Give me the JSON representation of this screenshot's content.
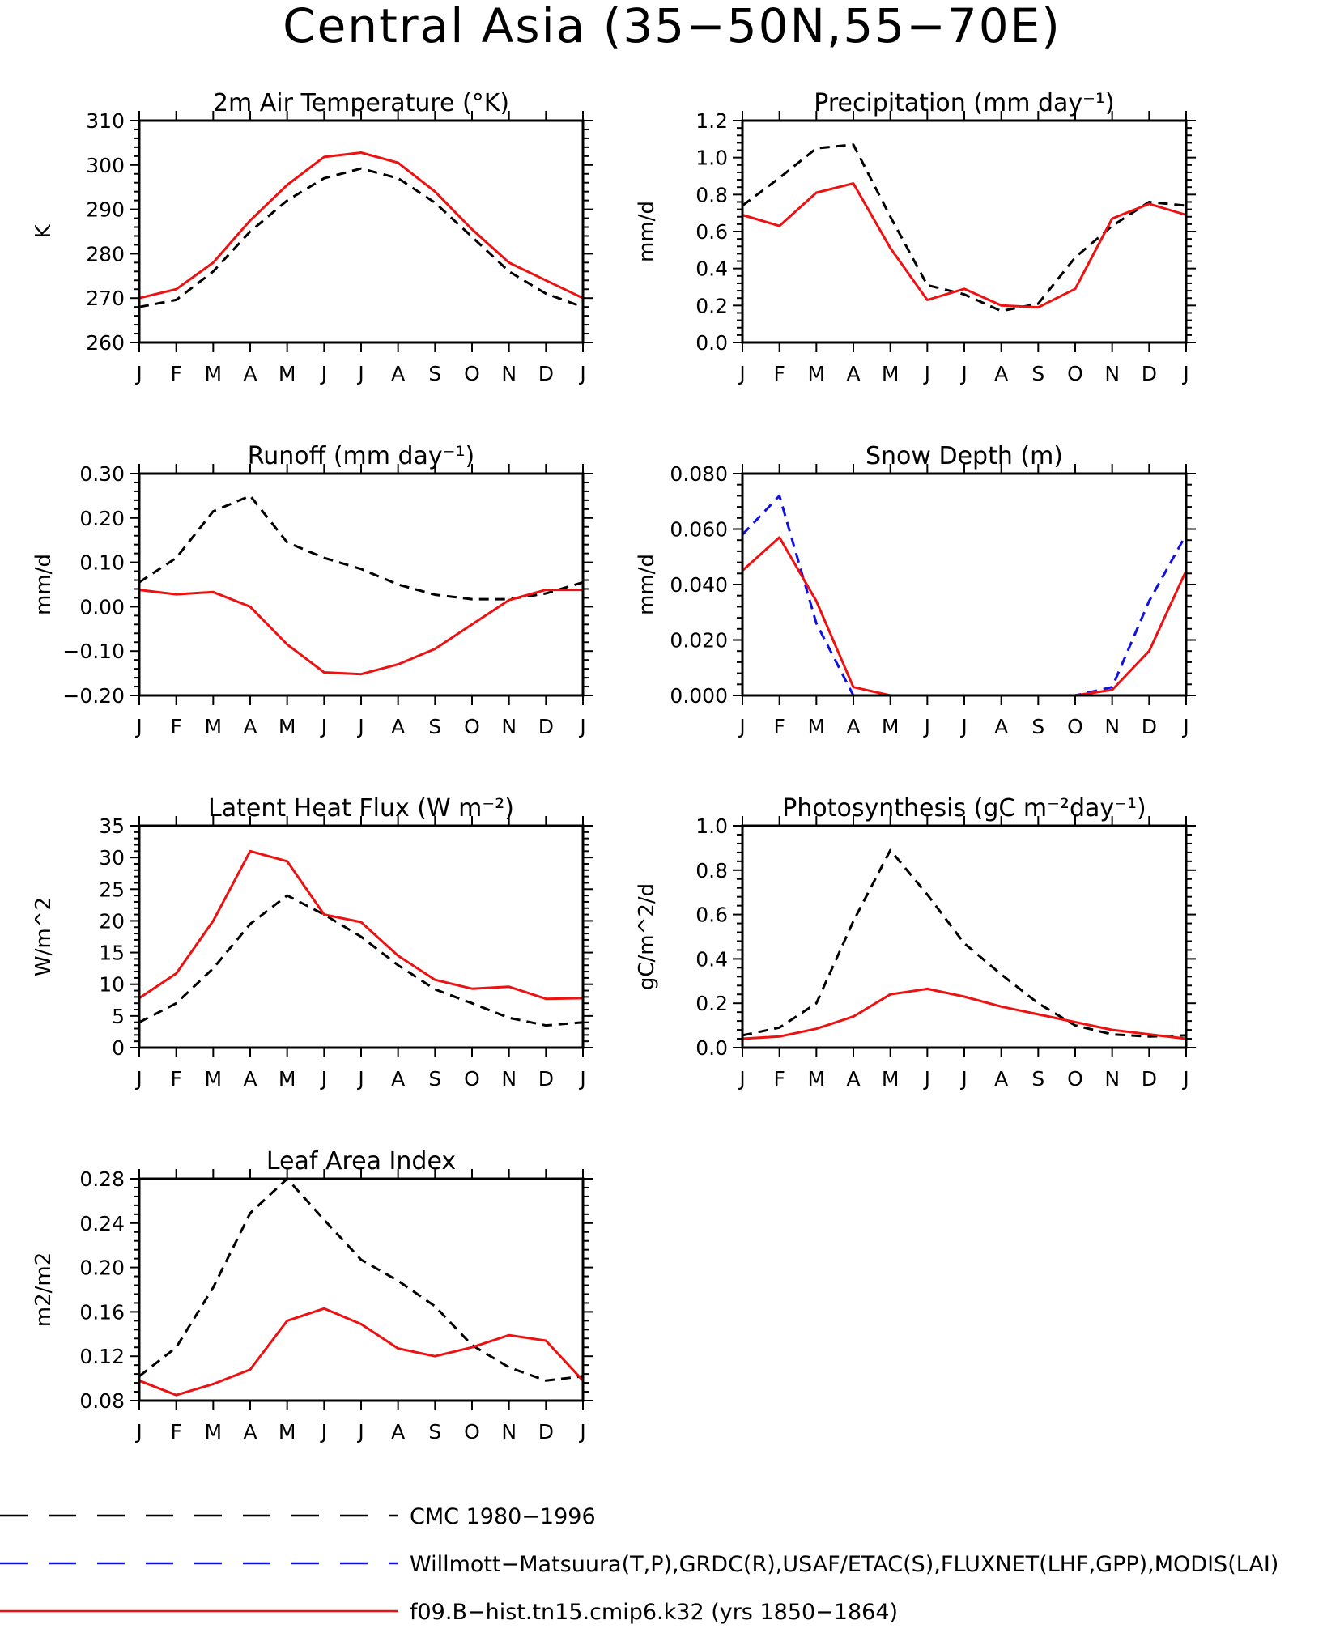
{
  "figure_title": "Central Asia (35−50N,55−70E)",
  "months": [
    "J",
    "F",
    "M",
    "A",
    "M",
    "J",
    "J",
    "A",
    "S",
    "O",
    "N",
    "D",
    "J"
  ],
  "colors": {
    "cmc": "#000000",
    "obs": "#1010e0",
    "model": "#ee1111"
  },
  "legend": [
    {
      "label": "CMC 1980−1996",
      "color": "#000000",
      "style": "dashed"
    },
    {
      "label": "Willmott−Matsuura(T,P),GRDC(R),USAF/ETAC(S),FLUXNET(LHF,GPP),MODIS(LAI)",
      "color": "#1010e0",
      "style": "dashed"
    },
    {
      "label": "f09.B−hist.tn15.cmip6.k32 (yrs 1850−1864)",
      "color": "#ee1111",
      "style": "solid"
    }
  ],
  "chart_data": [
    {
      "type": "line",
      "title": "2m Air Temperature (°K)",
      "ylabel": "K",
      "ylim": [
        260,
        310
      ],
      "yticks": [
        "260",
        "270",
        "280",
        "290",
        "300",
        "310"
      ],
      "series": [
        {
          "name": "CMC 1980−1996",
          "style": "dashed",
          "color": "#000000",
          "values": [
            268.0,
            269.6,
            276.0,
            285.0,
            292.0,
            297.0,
            299.2,
            297.0,
            291.5,
            283.8,
            276.0,
            271.0,
            268.0
          ]
        },
        {
          "name": "f09.B−hist.tn15.cmip6.k32 (yrs 1850−1864)",
          "style": "solid",
          "color": "#ee1111",
          "values": [
            270.0,
            272.0,
            278.0,
            287.5,
            295.5,
            301.8,
            302.8,
            300.5,
            294.0,
            285.5,
            278.0,
            274.0,
            270.0
          ]
        }
      ]
    },
    {
      "type": "line",
      "title": "Precipitation (mm day⁻¹)",
      "ylabel": "mm/d",
      "ylim": [
        0,
        1.2
      ],
      "yticks": [
        "0.0",
        "0.2",
        "0.4",
        "0.6",
        "0.8",
        "1.0",
        "1.2"
      ],
      "series": [
        {
          "name": "CMC 1980−1996",
          "style": "dashed",
          "color": "#000000",
          "values": [
            0.74,
            0.89,
            1.05,
            1.07,
            0.68,
            0.31,
            0.26,
            0.17,
            0.21,
            0.46,
            0.63,
            0.76,
            0.74
          ]
        },
        {
          "name": "f09.B−hist.tn15.cmip6.k32 (yrs 1850−1864)",
          "style": "solid",
          "color": "#ee1111",
          "values": [
            0.69,
            0.63,
            0.81,
            0.86,
            0.51,
            0.23,
            0.29,
            0.2,
            0.19,
            0.29,
            0.67,
            0.75,
            0.69
          ]
        }
      ]
    },
    {
      "type": "line",
      "title": "Runoff (mm day⁻¹)",
      "ylabel": "mm/d",
      "ylim": [
        -0.2,
        0.3
      ],
      "yticks": [
        "−0.20",
        "−0.10",
        "0.00",
        "0.10",
        "0.20",
        "0.30"
      ],
      "series": [
        {
          "name": "CMC 1980−1996",
          "style": "dashed",
          "color": "#000000",
          "values": [
            0.055,
            0.11,
            0.215,
            0.25,
            0.145,
            0.11,
            0.085,
            0.05,
            0.027,
            0.017,
            0.017,
            0.03,
            0.055
          ]
        },
        {
          "name": "f09.B−hist.tn15.cmip6.k32 (yrs 1850−1864)",
          "style": "solid",
          "color": "#ee1111",
          "values": [
            0.038,
            0.028,
            0.033,
            0.0,
            -0.085,
            -0.148,
            -0.152,
            -0.13,
            -0.095,
            -0.04,
            0.015,
            0.038,
            0.038
          ]
        }
      ]
    },
    {
      "type": "line",
      "title": "Snow Depth (m)",
      "ylabel": "mm/d",
      "ylim": [
        0,
        0.08
      ],
      "yticks": [
        "0.000",
        "0.020",
        "0.040",
        "0.060",
        "0.080"
      ],
      "series": [
        {
          "name": "CMC 1980−1996",
          "style": "dashed",
          "color": "#000000",
          "values": [
            0,
            0,
            0,
            0,
            0,
            0,
            0,
            0,
            0,
            0,
            0,
            0,
            0
          ]
        },
        {
          "name": "Willmott−Matsuura(T,P),GRDC(R),USAF/ETAC(S),FLUXNET(LHF,GPP),MODIS(LAI)",
          "style": "dashed",
          "color": "#1010e0",
          "values": [
            0.058,
            0.072,
            0.026,
            0.0,
            0.0,
            0.0,
            0.0,
            0.0,
            0.0,
            0.0,
            0.003,
            0.034,
            0.058
          ]
        },
        {
          "name": "f09.B−hist.tn15.cmip6.k32 (yrs 1850−1864)",
          "style": "solid",
          "color": "#ee1111",
          "values": [
            0.045,
            0.057,
            0.034,
            0.003,
            0.0,
            0.0,
            0.0,
            0.0,
            0.0,
            0.0,
            0.002,
            0.016,
            0.045
          ]
        }
      ]
    },
    {
      "type": "line",
      "title": "Latent Heat Flux (W m⁻²)",
      "ylabel": "W/m^2",
      "ylim": [
        0,
        35
      ],
      "yticks": [
        "0",
        "5",
        "10",
        "15",
        "20",
        "25",
        "30",
        "35"
      ],
      "series": [
        {
          "name": "CMC 1980−1996",
          "style": "dashed",
          "color": "#000000",
          "values": [
            4.0,
            7.0,
            12.5,
            19.5,
            24.0,
            21.0,
            17.5,
            13.0,
            9.2,
            7.0,
            4.7,
            3.5,
            4.0
          ]
        },
        {
          "name": "f09.B−hist.tn15.cmip6.k32 (yrs 1850−1864)",
          "style": "solid",
          "color": "#ee1111",
          "values": [
            7.8,
            11.7,
            20.0,
            31.0,
            29.4,
            21.0,
            19.8,
            14.5,
            10.7,
            9.3,
            9.6,
            7.7,
            7.8
          ]
        }
      ]
    },
    {
      "type": "line",
      "title": "Photosynthesis (gC m⁻²day⁻¹)",
      "ylabel": "gC/m^2/d",
      "ylim": [
        0,
        1.0
      ],
      "yticks": [
        "0.0",
        "0.2",
        "0.4",
        "0.6",
        "0.8",
        "1.0"
      ],
      "series": [
        {
          "name": "CMC 1980−1996",
          "style": "dashed",
          "color": "#000000",
          "values": [
            0.055,
            0.09,
            0.2,
            0.57,
            0.89,
            0.69,
            0.47,
            0.33,
            0.2,
            0.1,
            0.06,
            0.05,
            0.055
          ]
        },
        {
          "name": "f09.B−hist.tn15.cmip6.k32 (yrs 1850−1864)",
          "style": "solid",
          "color": "#ee1111",
          "values": [
            0.04,
            0.05,
            0.085,
            0.14,
            0.24,
            0.265,
            0.23,
            0.185,
            0.15,
            0.115,
            0.08,
            0.06,
            0.04
          ]
        }
      ]
    },
    {
      "type": "line",
      "title": "Leaf Area Index",
      "ylabel": "m2/m2",
      "ylim": [
        0.08,
        0.28
      ],
      "yticks": [
        "0.08",
        "0.12",
        "0.16",
        "0.20",
        "0.24",
        "0.28"
      ],
      "series": [
        {
          "name": "CMC 1980−1996",
          "style": "dashed",
          "color": "#000000",
          "values": [
            0.102,
            0.128,
            0.182,
            0.249,
            0.28,
            0.243,
            0.207,
            0.188,
            0.165,
            0.13,
            0.11,
            0.098,
            0.102
          ]
        },
        {
          "name": "f09.B−hist.tn15.cmip6.k32 (yrs 1850−1864)",
          "style": "solid",
          "color": "#ee1111",
          "values": [
            0.098,
            0.085,
            0.095,
            0.108,
            0.152,
            0.163,
            0.149,
            0.127,
            0.12,
            0.128,
            0.139,
            0.134,
            0.098
          ]
        }
      ]
    }
  ]
}
